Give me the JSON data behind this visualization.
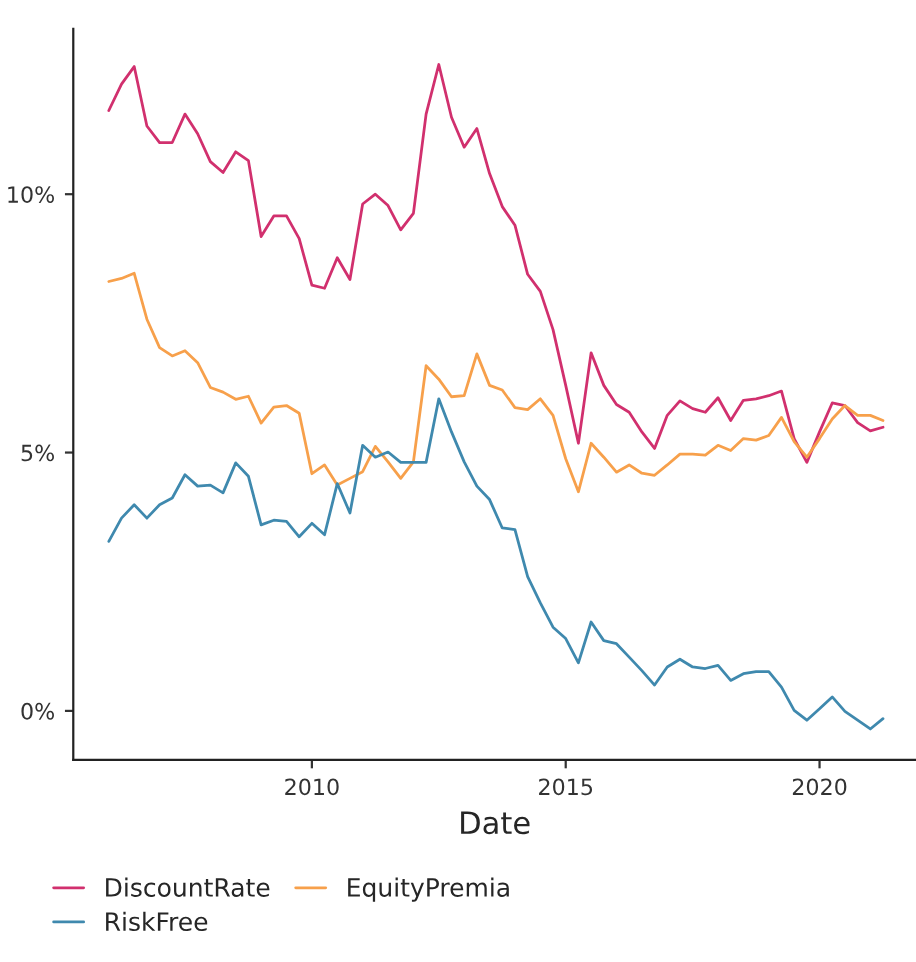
{
  "chart_data": {
    "type": "line",
    "xlabel": "Date",
    "x": [
      2006.0,
      2006.25,
      2006.5,
      2006.75,
      2007.0,
      2007.25,
      2007.5,
      2007.75,
      2008.0,
      2008.25,
      2008.5,
      2008.75,
      2009.0,
      2009.25,
      2009.5,
      2009.75,
      2010.0,
      2010.25,
      2010.5,
      2010.75,
      2011.0,
      2011.25,
      2011.5,
      2011.75,
      2012.0,
      2012.25,
      2012.5,
      2012.75,
      2013.0,
      2013.25,
      2013.5,
      2013.75,
      2014.0,
      2014.25,
      2014.5,
      2014.75,
      2015.0,
      2015.25,
      2015.5,
      2015.75,
      2016.0,
      2016.25,
      2016.5,
      2016.75,
      2017.0,
      2017.25,
      2017.5,
      2017.75,
      2018.0,
      2018.25,
      2018.5,
      2018.75,
      2019.0,
      2019.25,
      2019.5,
      2019.75,
      2020.0,
      2020.25,
      2020.5,
      2020.75,
      2021.0,
      2021.25
    ],
    "series": [
      {
        "name": "DiscountRate",
        "color": "#d1306e",
        "values": [
          11.62,
          12.13,
          12.47,
          11.32,
          11.0,
          11.0,
          11.55,
          11.17,
          10.63,
          10.42,
          10.82,
          10.65,
          9.18,
          9.58,
          9.58,
          9.14,
          8.24,
          8.18,
          8.77,
          8.35,
          9.81,
          10.0,
          9.78,
          9.31,
          9.63,
          11.55,
          12.51,
          11.49,
          10.91,
          11.27,
          10.4,
          9.76,
          9.4,
          8.45,
          8.12,
          7.38,
          6.3,
          5.18,
          6.93,
          6.3,
          5.93,
          5.78,
          5.4,
          5.08,
          5.72,
          6.0,
          5.85,
          5.78,
          6.06,
          5.62,
          6.01,
          6.04,
          6.1,
          6.19,
          5.27,
          4.81,
          5.4,
          5.96,
          5.91,
          5.58,
          5.42,
          5.49
        ]
      },
      {
        "name": "EquityPremia",
        "color": "#f7a04b",
        "values": [
          8.31,
          8.37,
          8.47,
          7.58,
          7.03,
          6.87,
          6.97,
          6.74,
          6.26,
          6.17,
          6.03,
          6.09,
          5.57,
          5.88,
          5.91,
          5.76,
          4.59,
          4.76,
          4.37,
          4.5,
          4.63,
          5.12,
          4.82,
          4.5,
          4.82,
          6.68,
          6.42,
          6.08,
          6.1,
          6.91,
          6.3,
          6.21,
          5.87,
          5.83,
          6.04,
          5.72,
          4.88,
          4.24,
          5.18,
          4.91,
          4.62,
          4.76,
          4.6,
          4.56,
          4.76,
          4.97,
          4.97,
          4.95,
          5.14,
          5.04,
          5.27,
          5.24,
          5.33,
          5.68,
          5.21,
          4.91,
          5.27,
          5.65,
          5.91,
          5.72,
          5.72,
          5.62
        ]
      },
      {
        "name": "RiskFree",
        "color": "#3f89ae",
        "values": [
          3.28,
          3.73,
          3.99,
          3.73,
          3.99,
          4.12,
          4.57,
          4.35,
          4.37,
          4.22,
          4.8,
          4.54,
          3.6,
          3.69,
          3.67,
          3.37,
          3.63,
          3.41,
          4.4,
          3.83,
          5.14,
          4.91,
          5.01,
          4.81,
          4.81,
          4.81,
          6.04,
          5.4,
          4.82,
          4.35,
          4.09,
          3.54,
          3.51,
          2.6,
          2.09,
          1.62,
          1.4,
          0.93,
          1.72,
          1.36,
          1.3,
          1.04,
          0.78,
          0.5,
          0.85,
          1.0,
          0.85,
          0.82,
          0.88,
          0.59,
          0.72,
          0.76,
          0.76,
          0.46,
          0.01,
          -0.18,
          0.04,
          0.27,
          -0.01,
          -0.18,
          -0.35,
          -0.15
        ]
      }
    ],
    "xlim": [
      2005.3,
      2021.9
    ],
    "xticks": [
      2010,
      2015,
      2020
    ],
    "ylim": [
      -0.95,
      13.2
    ],
    "yticks": [
      {
        "value": 0,
        "label": "0%"
      },
      {
        "value": 5,
        "label": "5%"
      },
      {
        "value": 10,
        "label": "10%"
      }
    ],
    "legend": "bottom",
    "grid": false
  }
}
